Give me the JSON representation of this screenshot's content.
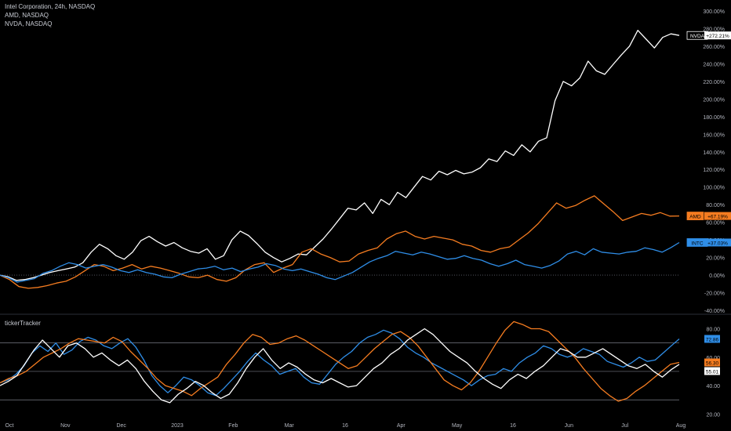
{
  "header": {
    "line1": "Intel Corporation, 24h, NASDAQ",
    "line2": "AMD, NASDAQ",
    "line3": "NVDA, NASDAQ"
  },
  "indicator_title": "tickerTracker",
  "chart_data": [
    {
      "type": "line",
      "x_tick_labels": [
        "Oct",
        "Nov",
        "Dec",
        "2023",
        "Feb",
        "Mar",
        "16",
        "Apr",
        "May",
        "16",
        "Jun",
        "Jul",
        "Aug"
      ],
      "y_tick_labels": [
        "300.00%",
        "280.00%",
        "260.00%",
        "240.00%",
        "220.00%",
        "200.00%",
        "180.00%",
        "160.00%",
        "140.00%",
        "120.00%",
        "100.00%",
        "80.00%",
        "60.00%",
        "40.00%",
        "20.00%",
        "0.00%",
        "-20.00%",
        "-40.00%"
      ],
      "ylim": [
        -40,
        300
      ],
      "grid": false,
      "series": [
        {
          "name": "NVDA",
          "color": "#ffffff",
          "last_label": "+272.21%",
          "values": [
            0,
            -2,
            -6,
            -5,
            -3,
            0,
            3,
            5,
            7,
            9,
            14,
            26,
            35,
            30,
            22,
            18,
            26,
            39,
            44,
            38,
            33,
            37,
            31,
            27,
            25,
            30,
            18,
            22,
            40,
            50,
            45,
            36,
            26,
            20,
            15,
            19,
            24,
            23,
            32,
            41,
            52,
            64,
            76,
            74,
            82,
            70,
            86,
            80,
            94,
            88,
            100,
            112,
            108,
            118,
            114,
            119,
            115,
            117,
            122,
            132,
            129,
            141,
            136,
            148,
            140,
            152,
            156,
            198,
            220,
            215,
            224,
            243,
            232,
            228,
            239,
            250,
            260,
            278,
            268,
            258,
            270,
            274,
            272.21
          ]
        },
        {
          "name": "AMD",
          "color": "#f57c20",
          "last_label": "+67.19%",
          "values": [
            0,
            -5,
            -13,
            -15,
            -14,
            -12,
            -9,
            -7,
            -2,
            5,
            12,
            10,
            5,
            8,
            12,
            7,
            10,
            8,
            5,
            2,
            -2,
            -3,
            0,
            -5,
            -7,
            -3,
            6,
            12,
            14,
            3,
            8,
            12,
            26,
            30,
            24,
            20,
            15,
            16,
            24,
            28,
            31,
            41,
            47,
            50,
            44,
            41,
            44,
            42,
            40,
            35,
            33,
            28,
            26,
            30,
            32,
            40,
            48,
            58,
            70,
            82,
            76,
            79,
            85,
            90,
            81,
            72,
            62,
            66,
            70,
            68,
            71,
            67,
            67.19
          ]
        },
        {
          "name": "INTC",
          "color": "#2f8ee8",
          "last_label": "+37.03%",
          "values": [
            0,
            -3,
            -8,
            -6,
            -4,
            2,
            5,
            10,
            14,
            12,
            8,
            10,
            12,
            9,
            5,
            3,
            6,
            3,
            1,
            -2,
            -3,
            1,
            4,
            7,
            8,
            10,
            6,
            8,
            4,
            7,
            9,
            13,
            11,
            7,
            5,
            7,
            4,
            1,
            -3,
            -5,
            -1,
            3,
            9,
            15,
            19,
            22,
            27,
            25,
            23,
            26,
            24,
            21,
            18,
            19,
            22,
            19,
            17,
            13,
            10,
            13,
            17,
            12,
            10,
            8,
            11,
            16,
            24,
            27,
            23,
            30,
            26,
            25,
            24,
            26,
            27,
            31,
            29,
            26,
            31,
            37.03
          ]
        }
      ]
    },
    {
      "type": "line",
      "title": "tickerTracker",
      "y_tick_labels": [
        "80.00",
        "60.00",
        "40.00",
        "20.00"
      ],
      "ylim": [
        18,
        88
      ],
      "reference_lines": [
        70,
        50,
        30
      ],
      "series": [
        {
          "name": "INTC",
          "color": "#2f8ee8",
          "last_label": "72.86",
          "values": [
            42,
            44,
            48,
            54,
            63,
            68,
            64,
            70,
            62,
            65,
            71,
            74,
            72,
            68,
            66,
            70,
            73,
            67,
            58,
            47,
            40,
            35,
            40,
            46,
            44,
            40,
            35,
            33,
            38,
            44,
            50,
            57,
            63,
            58,
            54,
            48,
            50,
            52,
            46,
            42,
            41,
            48,
            55,
            60,
            64,
            70,
            74,
            76,
            79,
            77,
            73,
            67,
            63,
            60,
            56,
            53,
            50,
            47,
            44,
            40,
            44,
            47,
            48,
            52,
            50,
            56,
            60,
            63,
            68,
            66,
            62,
            60,
            62,
            66,
            64,
            62,
            57,
            55,
            53,
            56,
            60,
            57,
            58,
            63,
            68,
            72.86
          ]
        },
        {
          "name": "AMD",
          "color": "#f57c20",
          "last_label": "56.30",
          "values": [
            42,
            45,
            47,
            50,
            55,
            60,
            63,
            66,
            70,
            73,
            72,
            71,
            70,
            74,
            71,
            64,
            58,
            52,
            45,
            40,
            38,
            36,
            33,
            38,
            42,
            46,
            55,
            62,
            70,
            76,
            74,
            69,
            70,
            73,
            75,
            72,
            68,
            64,
            60,
            56,
            52,
            54,
            60,
            66,
            71,
            76,
            78,
            74,
            68,
            60,
            52,
            44,
            40,
            37,
            42,
            50,
            60,
            70,
            79,
            85,
            83,
            80,
            80,
            78,
            72,
            66,
            60,
            52,
            45,
            38,
            33,
            29,
            31,
            36,
            40,
            45,
            50,
            55,
            56.3
          ]
        },
        {
          "name": "NVDA",
          "color": "#ffffff",
          "last_label": "55.01",
          "values": [
            40,
            43,
            47,
            56,
            65,
            72,
            66,
            60,
            68,
            70,
            66,
            60,
            63,
            58,
            54,
            58,
            52,
            43,
            36,
            30,
            28,
            34,
            38,
            43,
            40,
            35,
            31,
            34,
            42,
            52,
            60,
            66,
            58,
            52,
            56,
            53,
            48,
            44,
            42,
            45,
            42,
            39,
            40,
            46,
            52,
            56,
            62,
            66,
            72,
            76,
            80,
            76,
            70,
            64,
            60,
            56,
            50,
            45,
            41,
            38,
            44,
            48,
            45,
            50,
            54,
            60,
            66,
            64,
            60,
            60,
            63,
            66,
            62,
            58,
            54,
            52,
            55,
            50,
            46,
            51,
            55.01
          ]
        }
      ]
    }
  ]
}
